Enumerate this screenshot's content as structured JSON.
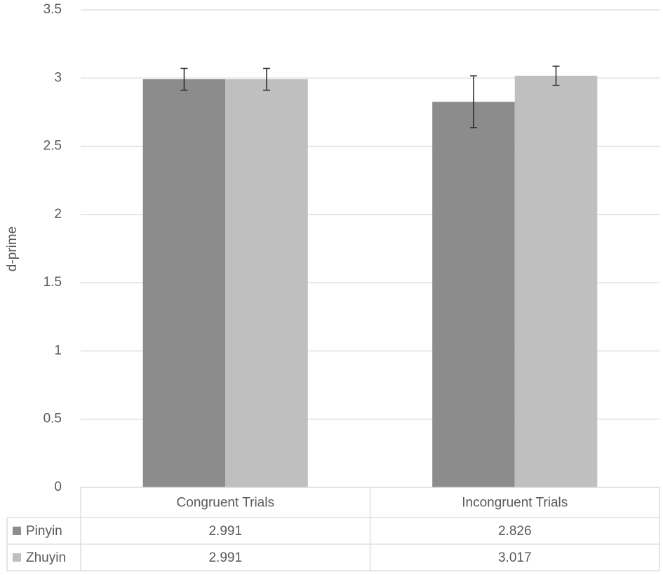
{
  "chart_data": {
    "type": "bar",
    "y_label": "d-prime",
    "categories": [
      "Congruent Trials",
      "Incongruent Trials"
    ],
    "series": [
      {
        "name": "Pinyin",
        "color": "#8c8c8c",
        "values": [
          2.991,
          2.826
        ],
        "errors": [
          0.08,
          0.19
        ]
      },
      {
        "name": "Zhuyin",
        "color": "#bfbfbf",
        "values": [
          2.991,
          3.017
        ],
        "errors": [
          0.08,
          0.07
        ]
      }
    ],
    "ylim": [
      0,
      3.5
    ],
    "yticks": [
      0,
      0.5,
      1,
      1.5,
      2,
      2.5,
      3,
      3.5
    ],
    "grid": true,
    "data_table": true
  }
}
